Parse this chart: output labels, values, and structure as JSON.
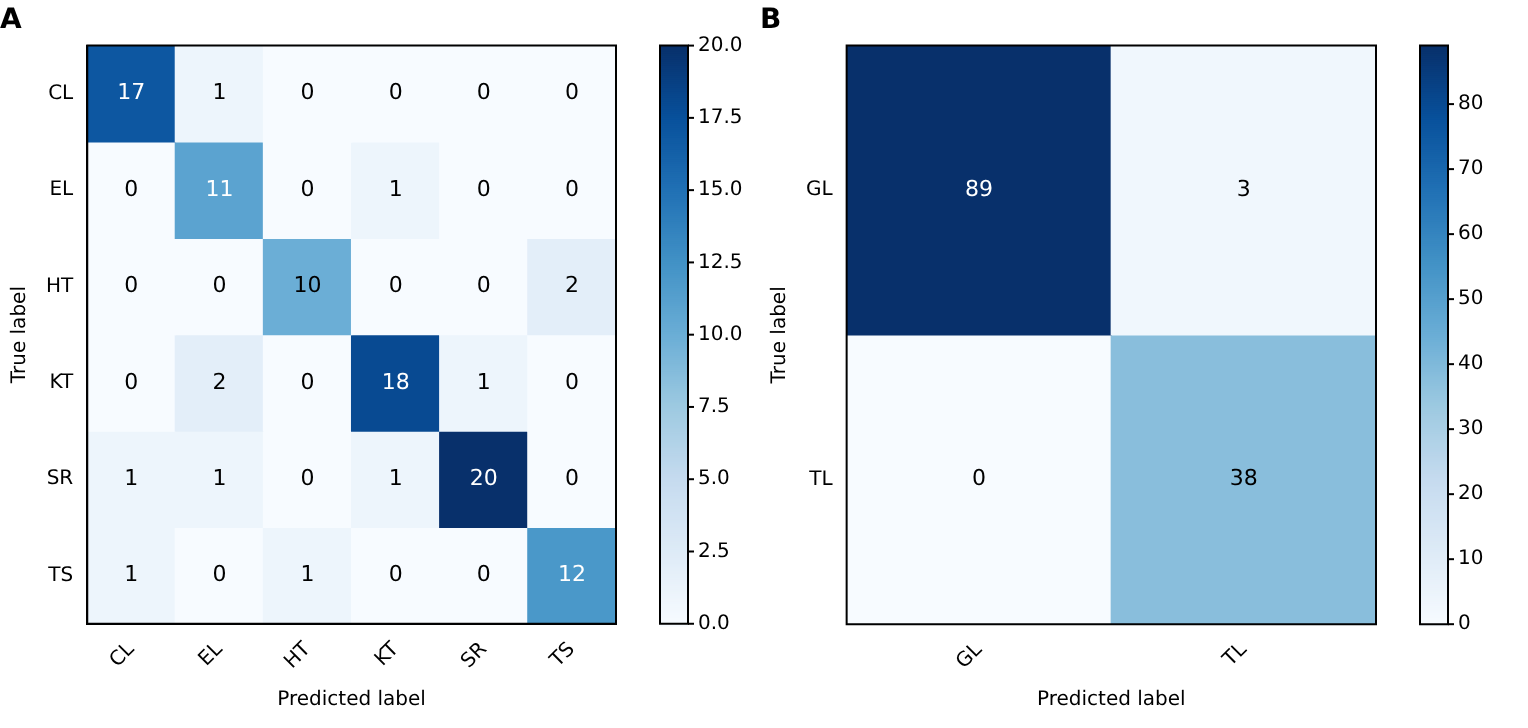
{
  "chart_data": [
    {
      "type": "heatmap",
      "title": "A",
      "xlabel": "Predicted label",
      "ylabel": "True label",
      "categories": [
        "CL",
        "EL",
        "HT",
        "KT",
        "SR",
        "TS"
      ],
      "y_categories": [
        "CL",
        "EL",
        "HT",
        "KT",
        "SR",
        "TS"
      ],
      "cells": [
        [
          17,
          1,
          0,
          0,
          0,
          0
        ],
        [
          0,
          11,
          0,
          1,
          0,
          0
        ],
        [
          0,
          0,
          10,
          0,
          0,
          2
        ],
        [
          0,
          2,
          0,
          18,
          1,
          0
        ],
        [
          1,
          1,
          0,
          1,
          20,
          0
        ],
        [
          1,
          0,
          1,
          0,
          0,
          12
        ]
      ],
      "clim": [
        0,
        20
      ],
      "cticks": [
        {
          "value": 0,
          "label": "0.0"
        },
        {
          "value": 2.5,
          "label": "2.5"
        },
        {
          "value": 5,
          "label": "5.0"
        },
        {
          "value": 7.5,
          "label": "7.5"
        },
        {
          "value": 10,
          "label": "10.0"
        },
        {
          "value": 12.5,
          "label": "12.5"
        },
        {
          "value": 15,
          "label": "15.0"
        },
        {
          "value": 17.5,
          "label": "17.5"
        },
        {
          "value": 20,
          "label": "20.0"
        }
      ],
      "data_labels": true
    },
    {
      "type": "heatmap",
      "title": "B",
      "xlabel": "Predicted label",
      "ylabel": "True label",
      "categories": [
        "GL",
        "TL"
      ],
      "y_categories": [
        "GL",
        "TL"
      ],
      "cells": [
        [
          89,
          3
        ],
        [
          0,
          38
        ]
      ],
      "clim": [
        0,
        89
      ],
      "cticks": [
        0,
        10,
        20,
        30,
        40,
        50,
        60,
        70,
        80
      ],
      "data_labels": true
    }
  ]
}
